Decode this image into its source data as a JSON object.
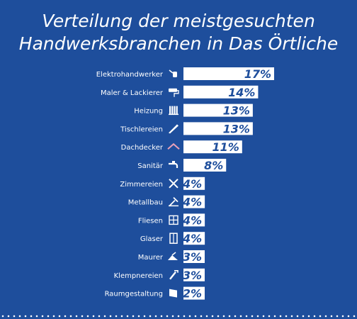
{
  "title": {
    "line1": "Verteilung der meistgesuchten",
    "line2": "Handwerksbranchen in Das Örtliche"
  },
  "colors": {
    "background": "#1e4e9c",
    "bar": "#ffffff",
    "value_text": "#1e4e9c",
    "label_text": "#ffffff"
  },
  "chart_data": {
    "type": "bar",
    "orientation": "horizontal",
    "categories": [
      "Elektrohandwerker",
      "Maler & Lackierer",
      "Heizung",
      "Tischlereien",
      "Dachdecker",
      "Sanitär",
      "Zimmereien",
      "Metallbau",
      "Fliesen",
      "Glaser",
      "Maurer",
      "Klempnereien",
      "Raumgestaltung"
    ],
    "values": [
      17,
      14,
      13,
      13,
      11,
      8,
      4,
      4,
      4,
      4,
      3,
      3,
      2
    ],
    "value_labels": [
      "17%",
      "14%",
      "13%",
      "13%",
      "11%",
      "8%",
      "4%",
      "4%",
      "4%",
      "4%",
      "3%",
      "3%",
      "2%"
    ],
    "icons": [
      "electric-plug-icon",
      "paint-roller-icon",
      "radiator-icon",
      "saw-icon",
      "roof-icon",
      "faucet-icon",
      "crossed-tools-icon",
      "welding-icon",
      "tiles-icon",
      "window-icon",
      "trowel-icon",
      "pipe-wrench-icon",
      "wallpaper-icon"
    ],
    "xlim": [
      0,
      17
    ],
    "grid": false,
    "legend": "none"
  }
}
